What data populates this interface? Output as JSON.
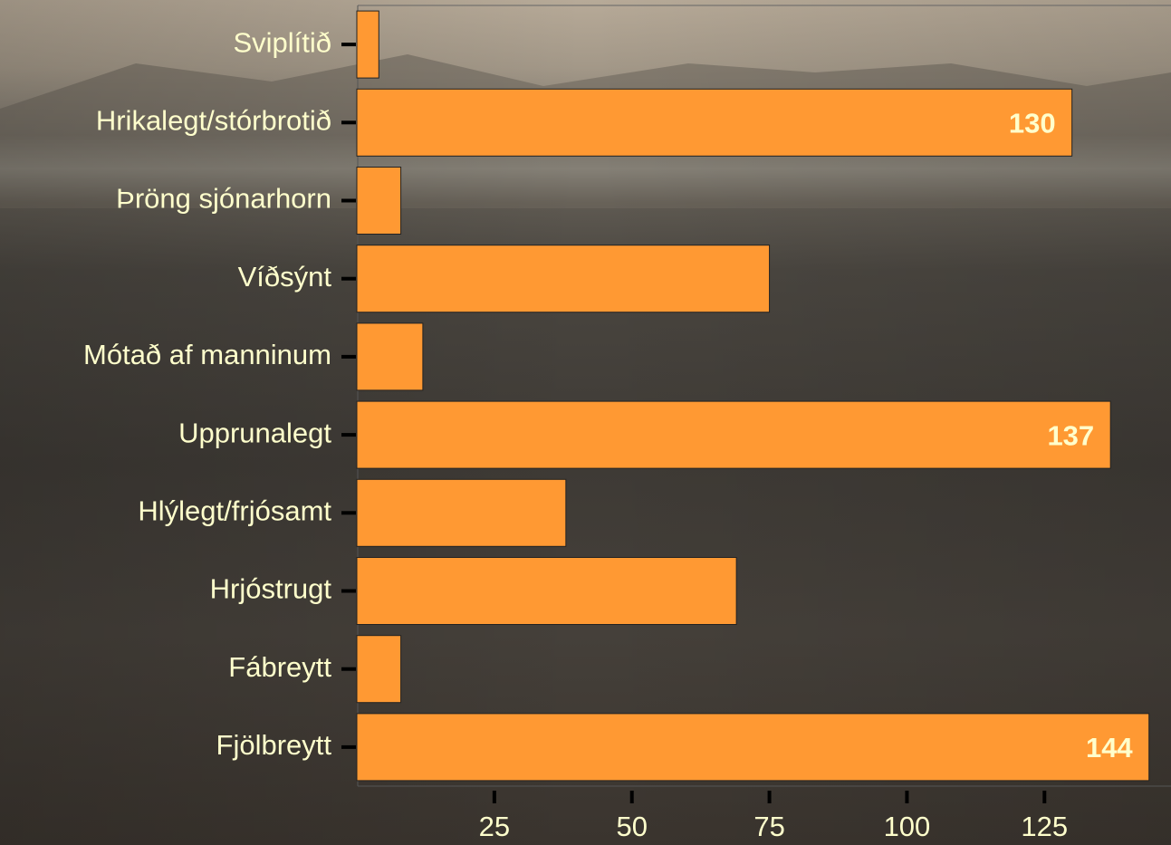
{
  "chart_data": {
    "type": "hbar",
    "categories": [
      "Sviplítið",
      "Hrikalegt/stórbrotið",
      "Þröng sjónarhorn",
      "Víðsýnt",
      "Mótað af manninum",
      "Upprunalegt",
      "Hlýlegt/frjósamt",
      "Hrjóstrugt",
      "Fábreytt",
      "Fjölbreytt"
    ],
    "values": [
      4,
      130,
      8,
      75,
      12,
      137,
      38,
      69,
      8,
      144
    ],
    "value_labels": [
      null,
      "130",
      null,
      null,
      null,
      "137",
      null,
      null,
      null,
      "144"
    ],
    "color": "#ff9933",
    "xlim": [
      0,
      148
    ],
    "xticks": [
      25,
      50,
      75,
      100,
      125
    ]
  }
}
